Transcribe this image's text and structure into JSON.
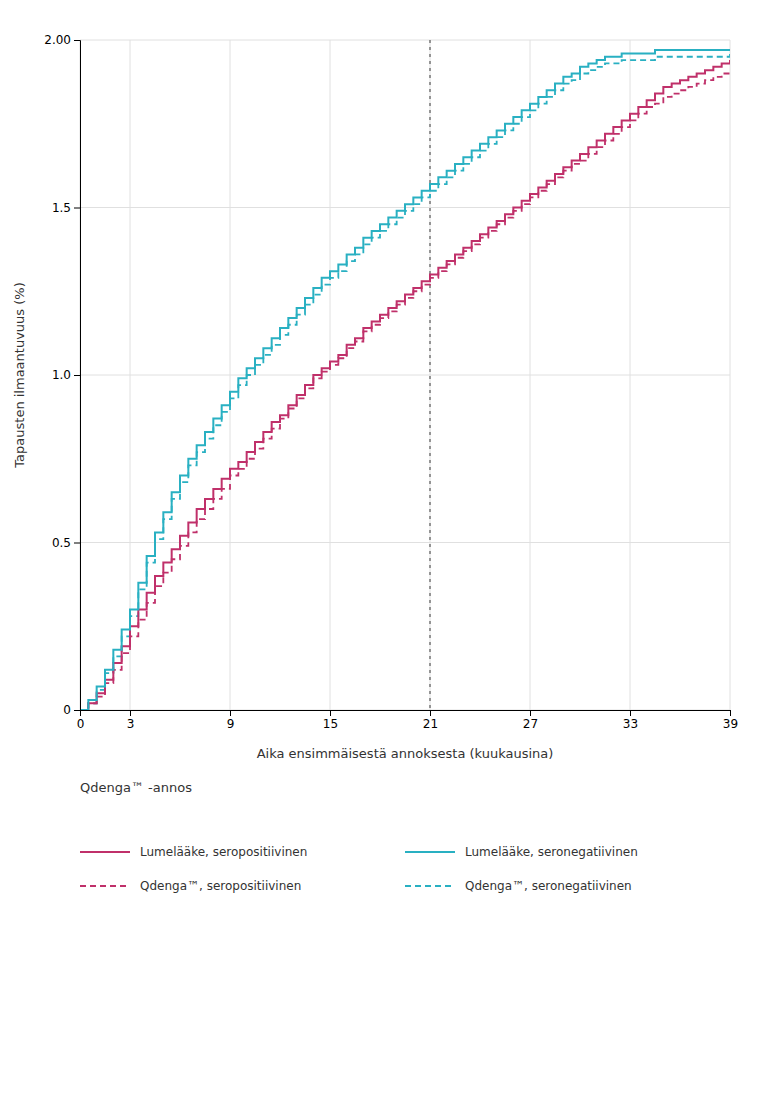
{
  "chart_data": {
    "type": "line",
    "xlabel": "Aika ensimmäisestä annoksesta (kuukausina)",
    "ylabel": "Tapausten ilmaantuvuus (%)",
    "annotations": [
      {
        "text": "Qdenga™ -annos"
      }
    ],
    "vline": 21,
    "xlim": [
      0,
      39
    ],
    "ylim": [
      0,
      2.0
    ],
    "xticks": [
      0,
      3,
      9,
      15,
      21,
      27,
      33,
      39
    ],
    "yticks": [
      0,
      0.5,
      {
        "value": 1.0,
        "label": "1.0"
      },
      1.5,
      {
        "value": 2.0,
        "label": "2.00"
      }
    ],
    "grid": true,
    "x": [
      0,
      0.5,
      1,
      1.5,
      2,
      2.5,
      3,
      3.5,
      4,
      4.5,
      5,
      5.5,
      6,
      6.5,
      7,
      7.5,
      8,
      8.5,
      9,
      9.5,
      10,
      10.5,
      11,
      11.5,
      12,
      12.5,
      13,
      13.5,
      14,
      14.5,
      15,
      15.5,
      16,
      16.5,
      17,
      17.5,
      18,
      18.5,
      19,
      19.5,
      20,
      20.5,
      21,
      21.5,
      22,
      22.5,
      23,
      23.5,
      24,
      24.5,
      25,
      25.5,
      26,
      26.5,
      27,
      27.5,
      28,
      28.5,
      29,
      29.5,
      30,
      30.5,
      31,
      31.5,
      32,
      32.5,
      33,
      33.5,
      34,
      34.5,
      35,
      35.5,
      36,
      36.5,
      37,
      37.5,
      38,
      38.5,
      39
    ],
    "series": [
      {
        "name": "Lumelääke, seropositiivinen",
        "color": "#c0306a",
        "line_style": "solid",
        "values": [
          0.0,
          0.02,
          0.05,
          0.09,
          0.14,
          0.19,
          0.25,
          0.3,
          0.35,
          0.4,
          0.44,
          0.48,
          0.52,
          0.56,
          0.6,
          0.63,
          0.66,
          0.69,
          0.72,
          0.74,
          0.77,
          0.8,
          0.83,
          0.86,
          0.88,
          0.91,
          0.94,
          0.97,
          1.0,
          1.02,
          1.04,
          1.06,
          1.09,
          1.11,
          1.14,
          1.16,
          1.18,
          1.2,
          1.22,
          1.24,
          1.26,
          1.28,
          1.3,
          1.32,
          1.34,
          1.36,
          1.38,
          1.4,
          1.42,
          1.44,
          1.46,
          1.48,
          1.5,
          1.52,
          1.54,
          1.56,
          1.58,
          1.6,
          1.62,
          1.64,
          1.66,
          1.68,
          1.7,
          1.72,
          1.74,
          1.76,
          1.78,
          1.8,
          1.82,
          1.84,
          1.86,
          1.87,
          1.88,
          1.89,
          1.9,
          1.91,
          1.92,
          1.93,
          1.94
        ]
      },
      {
        "name": "Lumelääke, seronegatiivinen",
        "color": "#29b0c2",
        "line_style": "solid",
        "values": [
          0.0,
          0.03,
          0.07,
          0.12,
          0.18,
          0.24,
          0.3,
          0.38,
          0.46,
          0.53,
          0.59,
          0.65,
          0.7,
          0.75,
          0.79,
          0.83,
          0.87,
          0.91,
          0.95,
          0.99,
          1.02,
          1.05,
          1.08,
          1.11,
          1.14,
          1.17,
          1.2,
          1.23,
          1.26,
          1.29,
          1.31,
          1.33,
          1.36,
          1.38,
          1.41,
          1.43,
          1.45,
          1.47,
          1.49,
          1.51,
          1.53,
          1.55,
          1.57,
          1.59,
          1.61,
          1.63,
          1.65,
          1.67,
          1.69,
          1.71,
          1.73,
          1.75,
          1.77,
          1.79,
          1.81,
          1.83,
          1.85,
          1.87,
          1.89,
          1.9,
          1.92,
          1.93,
          1.94,
          1.95,
          1.95,
          1.96,
          1.96,
          1.96,
          1.96,
          1.97,
          1.97,
          1.97,
          1.97,
          1.97,
          1.97,
          1.97,
          1.97,
          1.97,
          1.97
        ]
      },
      {
        "name": "Qdenga™, seropositiivinen",
        "color": "#c0306a",
        "line_style": "dashed",
        "values": [
          0.0,
          0.02,
          0.04,
          0.08,
          0.12,
          0.17,
          0.22,
          0.27,
          0.32,
          0.37,
          0.41,
          0.45,
          0.49,
          0.53,
          0.57,
          0.6,
          0.63,
          0.66,
          0.7,
          0.72,
          0.75,
          0.78,
          0.81,
          0.84,
          0.87,
          0.9,
          0.93,
          0.96,
          0.99,
          1.01,
          1.03,
          1.05,
          1.08,
          1.1,
          1.13,
          1.15,
          1.17,
          1.19,
          1.21,
          1.23,
          1.25,
          1.27,
          1.29,
          1.31,
          1.33,
          1.35,
          1.37,
          1.39,
          1.41,
          1.43,
          1.45,
          1.47,
          1.49,
          1.51,
          1.53,
          1.55,
          1.57,
          1.59,
          1.61,
          1.63,
          1.64,
          1.66,
          1.68,
          1.7,
          1.72,
          1.74,
          1.76,
          1.78,
          1.8,
          1.81,
          1.83,
          1.84,
          1.85,
          1.86,
          1.87,
          1.88,
          1.89,
          1.9,
          1.91
        ]
      },
      {
        "name": "Qdenga™, seronegatiivinen",
        "color": "#29b0c2",
        "line_style": "dashed",
        "values": [
          0.0,
          0.02,
          0.06,
          0.11,
          0.16,
          0.22,
          0.28,
          0.36,
          0.44,
          0.51,
          0.57,
          0.63,
          0.68,
          0.73,
          0.77,
          0.81,
          0.85,
          0.89,
          0.93,
          0.97,
          1.0,
          1.03,
          1.06,
          1.09,
          1.12,
          1.15,
          1.18,
          1.21,
          1.24,
          1.27,
          1.29,
          1.31,
          1.34,
          1.36,
          1.39,
          1.41,
          1.43,
          1.45,
          1.47,
          1.49,
          1.51,
          1.53,
          1.55,
          1.57,
          1.59,
          1.61,
          1.63,
          1.65,
          1.67,
          1.69,
          1.71,
          1.73,
          1.75,
          1.77,
          1.79,
          1.81,
          1.83,
          1.85,
          1.87,
          1.88,
          1.9,
          1.91,
          1.92,
          1.93,
          1.93,
          1.94,
          1.94,
          1.94,
          1.94,
          1.95,
          1.95,
          1.95,
          1.95,
          1.95,
          1.95,
          1.95,
          1.95,
          1.95,
          1.96
        ]
      }
    ]
  }
}
